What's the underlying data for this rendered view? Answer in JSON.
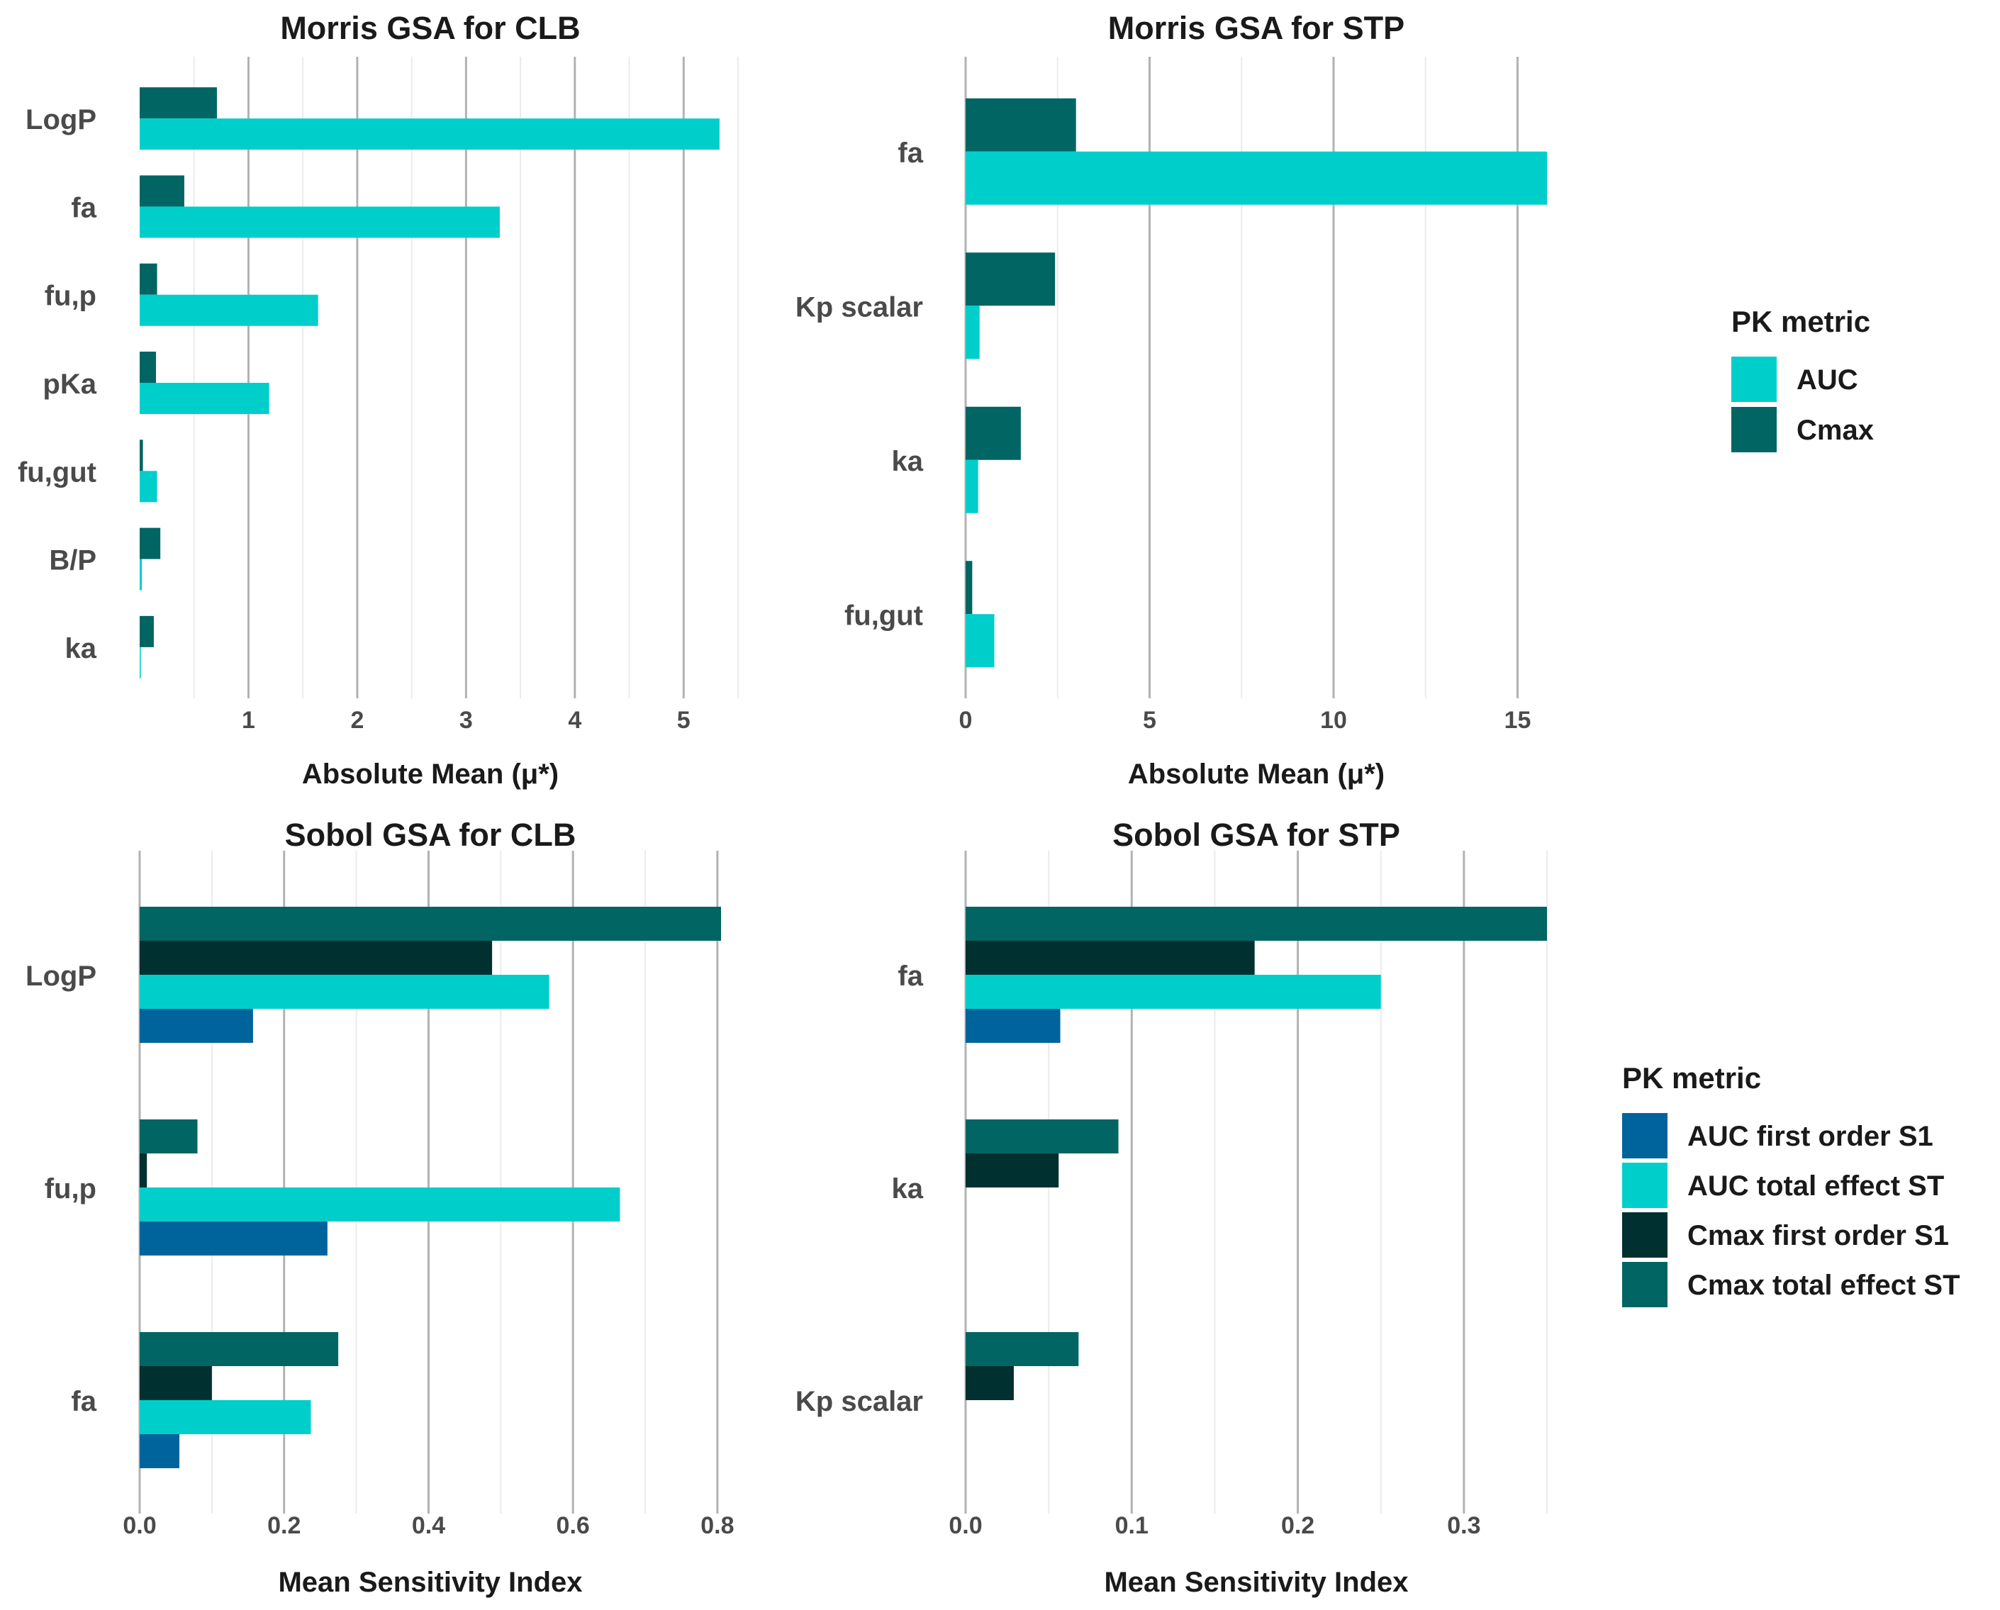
{
  "colors": {
    "AUC": "#00CECB",
    "Cmax": "#006563",
    "AUC first order S1": "#00649C",
    "AUC total effect ST": "#00CECB",
    "Cmax first order S1": "#00302F",
    "Cmax total effect ST": "#006563",
    "major_grid": "#b2b2b2",
    "minor_grid": "#ebebeb"
  },
  "legends": {
    "morris": {
      "title": "PK metric",
      "items": [
        "AUC",
        "Cmax"
      ]
    },
    "sobol": {
      "title": "PK metric",
      "items": [
        "AUC first order S1",
        "AUC total effect ST",
        "Cmax first order S1",
        "Cmax total effect ST"
      ]
    }
  },
  "chart_data": [
    {
      "type": "bar",
      "orientation": "horizontal",
      "title": "Morris GSA for CLB",
      "xlabel": "Absolute Mean (μ*)",
      "ylabel": "",
      "categories": [
        "LogP",
        "fa",
        "fu,p",
        "pKa",
        "fu,gut",
        "B/P",
        "ka"
      ],
      "xlim": [
        0,
        5.5
      ],
      "xticks": [
        1,
        2,
        3,
        4,
        5
      ],
      "xtick_labels": [
        "1",
        "2",
        "3",
        "4",
        "5"
      ],
      "minor_grid": [
        0.5,
        1.5,
        2.5,
        3.5,
        4.5,
        5.5
      ],
      "series": [
        {
          "name": "Cmax",
          "values": [
            0.71,
            0.41,
            0.16,
            0.15,
            0.03,
            0.19,
            0.13
          ]
        },
        {
          "name": "AUC",
          "values": [
            5.33,
            3.31,
            1.64,
            1.19,
            0.16,
            0.02,
            0.01
          ]
        }
      ]
    },
    {
      "type": "bar",
      "orientation": "horizontal",
      "title": "Morris GSA for STP",
      "xlabel": "Absolute Mean (μ*)",
      "ylabel": "",
      "categories": [
        "fa",
        "Kp scalar",
        "ka",
        "fu,gut"
      ],
      "xlim": [
        0,
        15.8
      ],
      "xticks": [
        0,
        5,
        10,
        15
      ],
      "xtick_labels": [
        "0",
        "5",
        "10",
        "15"
      ],
      "minor_grid": [
        2.5,
        7.5,
        12.5
      ],
      "series": [
        {
          "name": "Cmax",
          "values": [
            3.0,
            2.43,
            1.5,
            0.18
          ]
        },
        {
          "name": "AUC",
          "values": [
            15.8,
            0.38,
            0.34,
            0.78
          ]
        }
      ]
    },
    {
      "type": "bar",
      "orientation": "horizontal",
      "title": "Sobol GSA for CLB",
      "xlabel": "Mean Sensitivity Index",
      "ylabel": "",
      "categories": [
        "LogP",
        "fu,p",
        "fa"
      ],
      "xlim": [
        0,
        0.805
      ],
      "xticks": [
        0.0,
        0.2,
        0.4,
        0.6,
        0.8
      ],
      "xtick_labels": [
        "0.0",
        "0.2",
        "0.4",
        "0.6",
        "0.8"
      ],
      "minor_grid": [
        0.1,
        0.3,
        0.5,
        0.7
      ],
      "series": [
        {
          "name": "Cmax total effect ST",
          "values": [
            0.805,
            0.08,
            0.275
          ]
        },
        {
          "name": "Cmax first order S1",
          "values": [
            0.488,
            0.01,
            0.1
          ]
        },
        {
          "name": "AUC total effect ST",
          "values": [
            0.567,
            0.665,
            0.237
          ]
        },
        {
          "name": "AUC first order S1",
          "values": [
            0.157,
            0.26,
            0.055
          ]
        }
      ]
    },
    {
      "type": "bar",
      "orientation": "horizontal",
      "title": "Sobol GSA for STP",
      "xlabel": "Mean Sensitivity Index",
      "ylabel": "",
      "categories": [
        "fa",
        "ka",
        "Kp scalar"
      ],
      "xlim": [
        0,
        0.35
      ],
      "xticks": [
        0.0,
        0.1,
        0.2,
        0.3
      ],
      "xtick_labels": [
        "0.0",
        "0.1",
        "0.2",
        "0.3"
      ],
      "minor_grid": [
        0.05,
        0.15,
        0.25,
        0.35
      ],
      "series": [
        {
          "name": "Cmax total effect ST",
          "values": [
            0.35,
            0.092,
            0.068
          ]
        },
        {
          "name": "Cmax first order S1",
          "values": [
            0.174,
            0.056,
            0.029
          ]
        },
        {
          "name": "AUC total effect ST",
          "values": [
            0.25,
            0,
            0
          ]
        },
        {
          "name": "AUC first order S1",
          "values": [
            0.057,
            0,
            0
          ]
        }
      ]
    }
  ]
}
